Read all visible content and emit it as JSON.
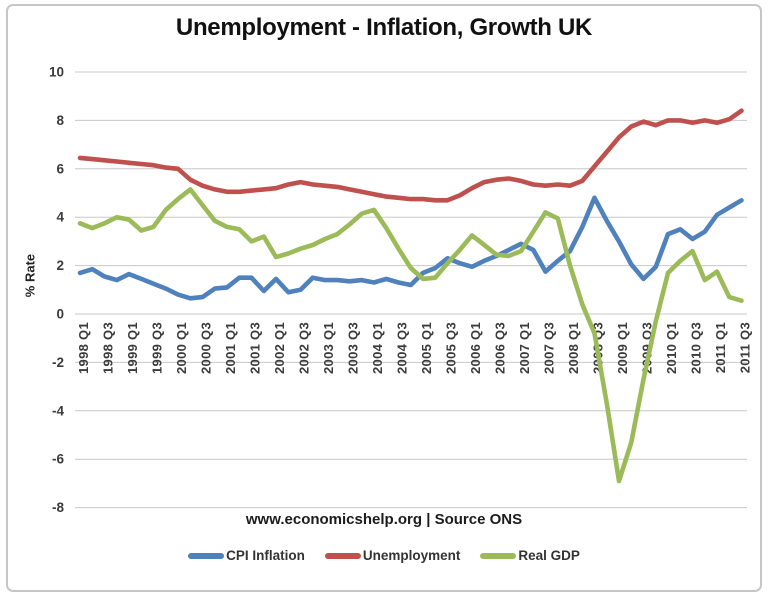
{
  "chart_data": {
    "type": "line",
    "title": "Unemployment - Inflation, Growth UK",
    "ylabel": "% Rate",
    "source_note": "www.economicshelp.org | Source ONS",
    "ylim": [
      -8,
      10
    ],
    "y_ticks": [
      10,
      8,
      6,
      4,
      2,
      0,
      -2,
      -4,
      -6,
      -8
    ],
    "x_label_every": 2,
    "grid": "horizontal-only",
    "legend_position": "bottom",
    "colors": {
      "grid": "#c8c8c8",
      "text": "#3b3b3b",
      "frame": "#c6c6c6",
      "background": "#ffffff"
    },
    "categories": [
      "1998 Q1",
      "1998 Q2",
      "1998 Q3",
      "1998 Q4",
      "1999 Q1",
      "1999 Q2",
      "1999 Q3",
      "1999 Q4",
      "2000 Q1",
      "2000 Q2",
      "2000 Q3",
      "2000 Q4",
      "2001 Q1",
      "2001 Q2",
      "2001 Q3",
      "2001 Q4",
      "2002 Q1",
      "2002 Q2",
      "2002 Q3",
      "2002 Q4",
      "2003 Q1",
      "2003 Q2",
      "2003 Q3",
      "2003 Q4",
      "2004 Q1",
      "2004 Q2",
      "2004 Q3",
      "2004 Q4",
      "2005 Q1",
      "2005 Q2",
      "2005 Q3",
      "2005 Q4",
      "2006 Q1",
      "2006 Q2",
      "2006 Q3",
      "2006 Q4",
      "2007 Q1",
      "2007 Q2",
      "2007 Q3",
      "2007 Q4",
      "2008 Q1",
      "2008 Q2",
      "2008 Q3",
      "2008 Q4",
      "2009 Q1",
      "2009 Q2",
      "2009 Q3",
      "2009 Q4",
      "2010 Q1",
      "2010 Q2",
      "2010 Q3",
      "2010 Q4",
      "2011 Q1",
      "2011 Q2",
      "2011 Q3"
    ],
    "series": [
      {
        "name": "CPI Inflation",
        "color": "#4f81bd",
        "values": [
          1.7,
          1.85,
          1.55,
          1.4,
          1.65,
          1.45,
          1.25,
          1.05,
          0.8,
          0.65,
          0.7,
          1.05,
          1.1,
          1.5,
          1.5,
          0.95,
          1.45,
          0.9,
          1.0,
          1.5,
          1.4,
          1.4,
          1.35,
          1.4,
          1.3,
          1.45,
          1.3,
          1.2,
          1.7,
          1.9,
          2.3,
          2.1,
          1.95,
          2.2,
          2.4,
          2.65,
          2.9,
          2.65,
          1.75,
          2.2,
          2.6,
          3.6,
          4.8,
          3.85,
          3.0,
          2.05,
          1.45,
          1.95,
          3.3,
          3.5,
          3.1,
          3.4,
          4.1,
          4.4,
          4.7
        ]
      },
      {
        "name": "Unemployment",
        "color": "#c0504d",
        "values": [
          6.45,
          6.4,
          6.35,
          6.3,
          6.25,
          6.2,
          6.15,
          6.05,
          6.0,
          5.55,
          5.3,
          5.15,
          5.05,
          5.05,
          5.1,
          5.15,
          5.2,
          5.35,
          5.45,
          5.35,
          5.3,
          5.25,
          5.15,
          5.05,
          4.95,
          4.85,
          4.8,
          4.75,
          4.75,
          4.7,
          4.7,
          4.9,
          5.2,
          5.45,
          5.55,
          5.6,
          5.5,
          5.35,
          5.3,
          5.35,
          5.3,
          5.5,
          6.1,
          6.7,
          7.3,
          7.75,
          7.95,
          7.8,
          8.0,
          8.0,
          7.9,
          8.0,
          7.9,
          8.05,
          8.4
        ]
      },
      {
        "name": "Real GDP",
        "color": "#9bbb59",
        "values": [
          3.75,
          3.55,
          3.75,
          4.0,
          3.9,
          3.45,
          3.6,
          4.3,
          4.75,
          5.15,
          4.5,
          3.85,
          3.6,
          3.5,
          3.0,
          3.2,
          2.35,
          2.5,
          2.7,
          2.85,
          3.1,
          3.3,
          3.7,
          4.15,
          4.3,
          3.55,
          2.7,
          1.9,
          1.45,
          1.5,
          2.1,
          2.65,
          3.25,
          2.85,
          2.45,
          2.4,
          2.6,
          3.4,
          4.2,
          3.95,
          2.0,
          0.4,
          -0.8,
          -3.7,
          -6.9,
          -5.3,
          -2.7,
          -0.3,
          1.7,
          2.2,
          2.6,
          1.4,
          1.75,
          0.7,
          0.55
        ]
      }
    ]
  }
}
